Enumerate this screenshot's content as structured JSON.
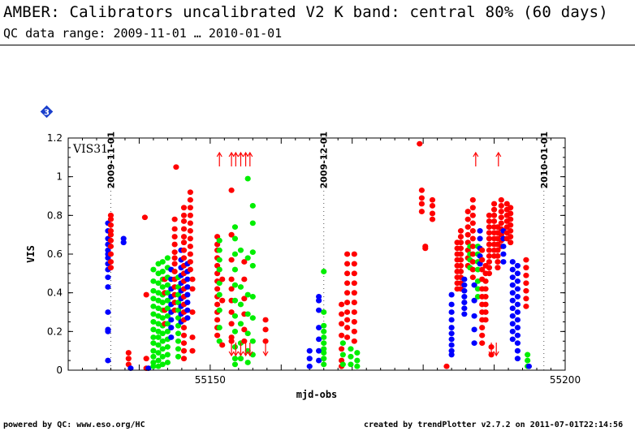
{
  "header": {
    "title": "AMBER: Calibrators uncalibrated V2 K band: central 80% (60 days)",
    "subtitle": "QC data range: 2009-11-01 … 2010-01-01"
  },
  "footer": {
    "left": "powered by QC: www.eso.org/HC",
    "right": "created by trendPlotter v2.7.2 on 2011-07-01T22:14:56"
  },
  "badge": {
    "label": "3",
    "color": "#1a3fcc"
  },
  "chart_data": {
    "type": "scatter",
    "panel_label": "VIS31",
    "xlabel": "mjd-obs",
    "ylabel": "VIS",
    "xlim": [
      55130,
      55200
    ],
    "ylim": [
      0,
      1.2
    ],
    "x_ticks": [
      55150,
      55200
    ],
    "y_ticks": [
      0,
      0.2,
      0.4,
      0.6,
      0.8,
      1,
      1.2
    ],
    "y_tick_labels": [
      "0",
      "0.2",
      "0.4",
      "0.6",
      "0.8",
      "1",
      "1.2"
    ],
    "date_markers": [
      {
        "label": "2009-11-01",
        "x": 55136
      },
      {
        "label": "2009-12-01",
        "x": 55166
      },
      {
        "label": "2010-01-01",
        "x": 55197
      }
    ],
    "series_colors": {
      "red": "#ff0000",
      "blue": "#0000ff",
      "green": "#00ee00"
    },
    "columns": [
      {
        "x": 55135.6,
        "color": "blue",
        "ys": [
          0.76,
          0.72,
          0.68,
          0.65,
          0.62,
          0.6,
          0.58,
          0.55,
          0.52,
          0.48,
          0.43,
          0.3,
          0.21,
          0.2,
          0.05
        ]
      },
      {
        "x": 55136.0,
        "color": "red",
        "ys": [
          0.8,
          0.78,
          0.75,
          0.72,
          0.7,
          0.67,
          0.64,
          0.6,
          0.56,
          0.53
        ]
      },
      {
        "x": 55137.8,
        "color": "blue",
        "ys": [
          0.68,
          0.66
        ]
      },
      {
        "x": 55138.5,
        "color": "red",
        "ys": [
          0.09,
          0.06,
          0.03
        ]
      },
      {
        "x": 55138.8,
        "color": "blue",
        "ys": [
          0.01
        ]
      },
      {
        "x": 55140.8,
        "color": "red",
        "ys": [
          0.79
        ]
      },
      {
        "x": 55141.0,
        "color": "red",
        "ys": [
          0.39,
          0.06,
          0.01
        ]
      },
      {
        "x": 55141.3,
        "color": "blue",
        "ys": [
          0.01
        ]
      },
      {
        "x": 55142.0,
        "color": "green",
        "ys": [
          0.52,
          0.46,
          0.41,
          0.37,
          0.33,
          0.29,
          0.25,
          0.21,
          0.17,
          0.14,
          0.1,
          0.07,
          0.04,
          0.02
        ]
      },
      {
        "x": 55142.7,
        "color": "green",
        "ys": [
          0.55,
          0.5,
          0.45,
          0.4,
          0.36,
          0.32,
          0.28,
          0.24,
          0.2,
          0.17,
          0.13,
          0.09,
          0.05,
          0.02
        ]
      },
      {
        "x": 55143.3,
        "color": "green",
        "ys": [
          0.56,
          0.51,
          0.47,
          0.43,
          0.39,
          0.35,
          0.31,
          0.27,
          0.23,
          0.19,
          0.15,
          0.11,
          0.07,
          0.03
        ]
      },
      {
        "x": 55143.6,
        "color": "red",
        "ys": [
          0.47,
          0.4,
          0.31,
          0.24
        ]
      },
      {
        "x": 55144.0,
        "color": "green",
        "ys": [
          0.58,
          0.53,
          0.48,
          0.44,
          0.4,
          0.36,
          0.32,
          0.28,
          0.24,
          0.2,
          0.16,
          0.12,
          0.08,
          0.04
        ]
      },
      {
        "x": 55144.5,
        "color": "blue",
        "ys": [
          0.52,
          0.47,
          0.42,
          0.38,
          0.34,
          0.3,
          0.26,
          0.22,
          0.17
        ]
      },
      {
        "x": 55145.0,
        "color": "red",
        "ys": [
          0.78,
          0.73,
          0.69,
          0.65,
          0.61,
          0.58,
          0.55,
          0.51,
          0.47,
          0.43,
          0.39,
          0.35,
          0.31
        ]
      },
      {
        "x": 55145.2,
        "color": "red",
        "ys": [
          1.05
        ]
      },
      {
        "x": 55145.5,
        "color": "green",
        "ys": [
          0.48,
          0.43,
          0.39,
          0.35,
          0.31,
          0.27,
          0.23,
          0.19,
          0.15,
          0.11,
          0.07
        ]
      },
      {
        "x": 55145.9,
        "color": "blue",
        "ys": [
          0.62,
          0.57,
          0.53,
          0.49,
          0.45,
          0.41,
          0.37,
          0.33,
          0.29,
          0.25
        ]
      },
      {
        "x": 55146.3,
        "color": "red",
        "ys": [
          0.84,
          0.8,
          0.77,
          0.73,
          0.69,
          0.66,
          0.62,
          0.58,
          0.54,
          0.5,
          0.46,
          0.42,
          0.38,
          0.34,
          0.3,
          0.26,
          0.22,
          0.18,
          0.14,
          0.1,
          0.06
        ]
      },
      {
        "x": 55146.8,
        "color": "blue",
        "ys": [
          0.55,
          0.51,
          0.47,
          0.43,
          0.39,
          0.35,
          0.31,
          0.27
        ]
      },
      {
        "x": 55147.2,
        "color": "red",
        "ys": [
          0.92,
          0.88,
          0.84,
          0.8,
          0.76,
          0.72,
          0.68,
          0.64,
          0.6,
          0.56,
          0.52
        ]
      },
      {
        "x": 55147.5,
        "color": "red",
        "ys": [
          0.47,
          0.42,
          0.3,
          0.17,
          0.1
        ]
      },
      {
        "x": 55151.0,
        "color": "red",
        "ys": [
          0.69,
          0.65,
          0.62,
          0.58,
          0.54,
          0.5,
          0.46,
          0.42,
          0.38,
          0.34,
          0.3,
          0.26,
          0.22,
          0.18
        ]
      },
      {
        "x": 55151.3,
        "color": "green",
        "ys": [
          0.67,
          0.62,
          0.57,
          0.52,
          0.45,
          0.39,
          0.31,
          0.22,
          0.15
        ]
      },
      {
        "x": 55151.7,
        "color": "red",
        "ys": [
          0.47,
          0.36,
          0.13
        ]
      },
      {
        "x": 55153.0,
        "color": "red",
        "ys": [
          0.93,
          0.7,
          0.57,
          0.47,
          0.42,
          0.36,
          0.3,
          0.24,
          0.17,
          0.15
        ]
      },
      {
        "x": 55153.5,
        "color": "green",
        "ys": [
          0.74,
          0.68,
          0.6,
          0.52,
          0.44,
          0.36,
          0.28,
          0.2,
          0.12,
          0.06,
          0.03
        ]
      },
      {
        "x": 55154.3,
        "color": "green",
        "ys": [
          0.62,
          0.43,
          0.34,
          0.24,
          0.14,
          0.06
        ]
      },
      {
        "x": 55154.8,
        "color": "red",
        "ys": [
          0.56,
          0.47,
          0.37,
          0.29,
          0.21,
          0.15
        ]
      },
      {
        "x": 55155.3,
        "color": "green",
        "ys": [
          0.99,
          0.58,
          0.39,
          0.29,
          0.19,
          0.1,
          0.04
        ]
      },
      {
        "x": 55156.0,
        "color": "green",
        "ys": [
          0.85,
          0.76,
          0.61,
          0.54,
          0.38,
          0.27,
          0.15,
          0.08
        ]
      },
      {
        "x": 55157.8,
        "color": "red",
        "ys": [
          0.26,
          0.21,
          0.15
        ]
      },
      {
        "x": 55164.0,
        "color": "blue",
        "ys": [
          0.1,
          0.06,
          0.02
        ]
      },
      {
        "x": 55165.3,
        "color": "blue",
        "ys": [
          0.38,
          0.36,
          0.31,
          0.22,
          0.16,
          0.1,
          0.05
        ]
      },
      {
        "x": 55166.0,
        "color": "green",
        "ys": [
          0.51,
          0.3,
          0.23,
          0.2,
          0.17,
          0.14,
          0.11,
          0.09,
          0.06,
          0.03
        ]
      },
      {
        "x": 55168.5,
        "color": "red",
        "ys": [
          0.34,
          0.29,
          0.24,
          0.18,
          0.11,
          0.05,
          0.02
        ]
      },
      {
        "x": 55168.7,
        "color": "green",
        "ys": [
          0.14,
          0.08,
          0.03
        ]
      },
      {
        "x": 55169.3,
        "color": "red",
        "ys": [
          0.6,
          0.55,
          0.5,
          0.45,
          0.4,
          0.35,
          0.3,
          0.26,
          0.22,
          0.17
        ]
      },
      {
        "x": 55169.8,
        "color": "green",
        "ys": [
          0.11,
          0.07,
          0.03
        ]
      },
      {
        "x": 55170.3,
        "color": "red",
        "ys": [
          0.6,
          0.55,
          0.5,
          0.45,
          0.4,
          0.35,
          0.3,
          0.25,
          0.2,
          0.15
        ]
      },
      {
        "x": 55170.7,
        "color": "green",
        "ys": [
          0.09,
          0.05,
          0.02
        ]
      },
      {
        "x": 55179.5,
        "color": "red",
        "ys": [
          1.17
        ]
      },
      {
        "x": 55179.8,
        "color": "red",
        "ys": [
          0.93,
          0.89,
          0.86,
          0.82
        ]
      },
      {
        "x": 55180.3,
        "color": "red",
        "ys": [
          0.64,
          0.63
        ]
      },
      {
        "x": 55181.3,
        "color": "red",
        "ys": [
          0.88,
          0.85,
          0.81,
          0.78
        ]
      },
      {
        "x": 55183.3,
        "color": "red",
        "ys": [
          0.02
        ]
      },
      {
        "x": 55184.0,
        "color": "blue",
        "ys": [
          0.39,
          0.34,
          0.3,
          0.26,
          0.22,
          0.19,
          0.16,
          0.13,
          0.1,
          0.08
        ]
      },
      {
        "x": 55184.8,
        "color": "red",
        "ys": [
          0.66,
          0.63,
          0.6,
          0.57,
          0.54,
          0.51,
          0.48,
          0.45,
          0.42
        ]
      },
      {
        "x": 55185.3,
        "color": "red",
        "ys": [
          0.72,
          0.69,
          0.66,
          0.63,
          0.6,
          0.57,
          0.54,
          0.51,
          0.48,
          0.45,
          0.42
        ]
      },
      {
        "x": 55185.8,
        "color": "blue",
        "ys": [
          0.47,
          0.44,
          0.41,
          0.38,
          0.35,
          0.32,
          0.29
        ]
      },
      {
        "x": 55186.3,
        "color": "red",
        "ys": [
          0.82,
          0.78,
          0.74,
          0.7,
          0.66,
          0.62,
          0.58,
          0.54
        ]
      },
      {
        "x": 55186.6,
        "color": "green",
        "ys": [
          0.64,
          0.6,
          0.57,
          0.53
        ]
      },
      {
        "x": 55187.0,
        "color": "red",
        "ys": [
          0.88,
          0.84,
          0.8,
          0.76,
          0.72,
          0.68,
          0.64,
          0.6,
          0.56,
          0.52,
          0.48
        ]
      },
      {
        "x": 55187.2,
        "color": "blue",
        "ys": [
          0.44,
          0.36,
          0.28,
          0.21,
          0.14
        ]
      },
      {
        "x": 55187.7,
        "color": "green",
        "ys": [
          0.64,
          0.6,
          0.56,
          0.52,
          0.46,
          0.42,
          0.38
        ]
      },
      {
        "x": 55188.0,
        "color": "blue",
        "ys": [
          0.72,
          0.68,
          0.63,
          0.59,
          0.55
        ]
      },
      {
        "x": 55188.3,
        "color": "red",
        "ys": [
          0.62,
          0.57,
          0.52,
          0.47,
          0.42,
          0.38,
          0.34,
          0.3,
          0.26,
          0.22,
          0.18,
          0.14
        ]
      },
      {
        "x": 55188.8,
        "color": "red",
        "ys": [
          0.54,
          0.5,
          0.46,
          0.42,
          0.38,
          0.34,
          0.3,
          0.26
        ]
      },
      {
        "x": 55189.3,
        "color": "red",
        "ys": [
          0.8,
          0.77,
          0.74,
          0.71,
          0.68,
          0.65,
          0.62,
          0.59,
          0.56,
          0.53,
          0.5
        ]
      },
      {
        "x": 55189.6,
        "color": "red",
        "ys": [
          0.12,
          0.08
        ]
      },
      {
        "x": 55190.0,
        "color": "red",
        "ys": [
          0.86,
          0.83,
          0.8,
          0.77,
          0.74,
          0.71,
          0.68,
          0.65,
          0.62,
          0.59
        ]
      },
      {
        "x": 55190.5,
        "color": "red",
        "ys": [
          0.74,
          0.71,
          0.68,
          0.65,
          0.62,
          0.59,
          0.56,
          0.53
        ]
      },
      {
        "x": 55191.0,
        "color": "red",
        "ys": [
          0.88,
          0.85,
          0.82,
          0.79,
          0.76,
          0.73,
          0.7,
          0.67,
          0.64
        ]
      },
      {
        "x": 55191.3,
        "color": "blue",
        "ys": [
          0.72,
          0.68,
          0.64,
          0.6,
          0.56
        ]
      },
      {
        "x": 55191.8,
        "color": "red",
        "ys": [
          0.86,
          0.83,
          0.8,
          0.77,
          0.74,
          0.71,
          0.68
        ]
      },
      {
        "x": 55192.3,
        "color": "red",
        "ys": [
          0.84,
          0.81,
          0.78,
          0.75,
          0.72,
          0.69,
          0.66
        ]
      },
      {
        "x": 55192.6,
        "color": "blue",
        "ys": [
          0.56,
          0.52,
          0.48,
          0.44,
          0.4,
          0.36,
          0.32,
          0.28,
          0.24,
          0.2,
          0.16
        ]
      },
      {
        "x": 55193.3,
        "color": "blue",
        "ys": [
          0.54,
          0.5,
          0.46,
          0.42,
          0.38,
          0.34,
          0.3,
          0.26,
          0.22,
          0.18,
          0.14,
          0.1,
          0.06
        ]
      },
      {
        "x": 55194.5,
        "color": "red",
        "ys": [
          0.57,
          0.53,
          0.49,
          0.45,
          0.41,
          0.37,
          0.33
        ]
      },
      {
        "x": 55194.7,
        "color": "green",
        "ys": [
          0.08,
          0.05,
          0.02
        ]
      },
      {
        "x": 55194.9,
        "color": "blue",
        "ys": [
          0.02
        ]
      }
    ],
    "up_arrows": [
      55151.3,
      55153.0,
      55153.6,
      55154.3,
      55155.0,
      55155.6,
      55187.4,
      55190.6
    ],
    "down_arrows": [
      55153.0,
      55153.6,
      55154.3,
      55155.0,
      55155.6,
      55157.8,
      55189.6,
      55190.3
    ]
  }
}
